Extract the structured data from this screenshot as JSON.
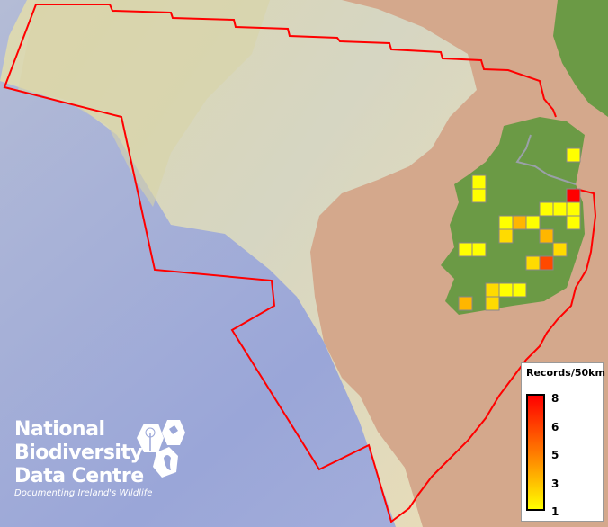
{
  "map": {
    "boundary_color": "#ff0000",
    "cell_size": "50km",
    "cells_records": [
      1,
      1,
      1,
      8,
      1,
      1,
      1,
      1,
      3,
      1,
      1,
      2,
      3,
      1,
      1,
      2,
      2,
      6,
      2,
      1,
      1,
      3,
      2
    ]
  },
  "legend": {
    "title": "Records/50km",
    "ticks": [
      "8",
      "6",
      "5",
      "3",
      "1"
    ],
    "min_color": "#ffff00",
    "max_color": "#ff0000"
  },
  "logo": {
    "line1": "National",
    "line2": "Biodiversity",
    "line3": "Data Centre",
    "tagline": "Documenting Ireland's Wildlife"
  }
}
